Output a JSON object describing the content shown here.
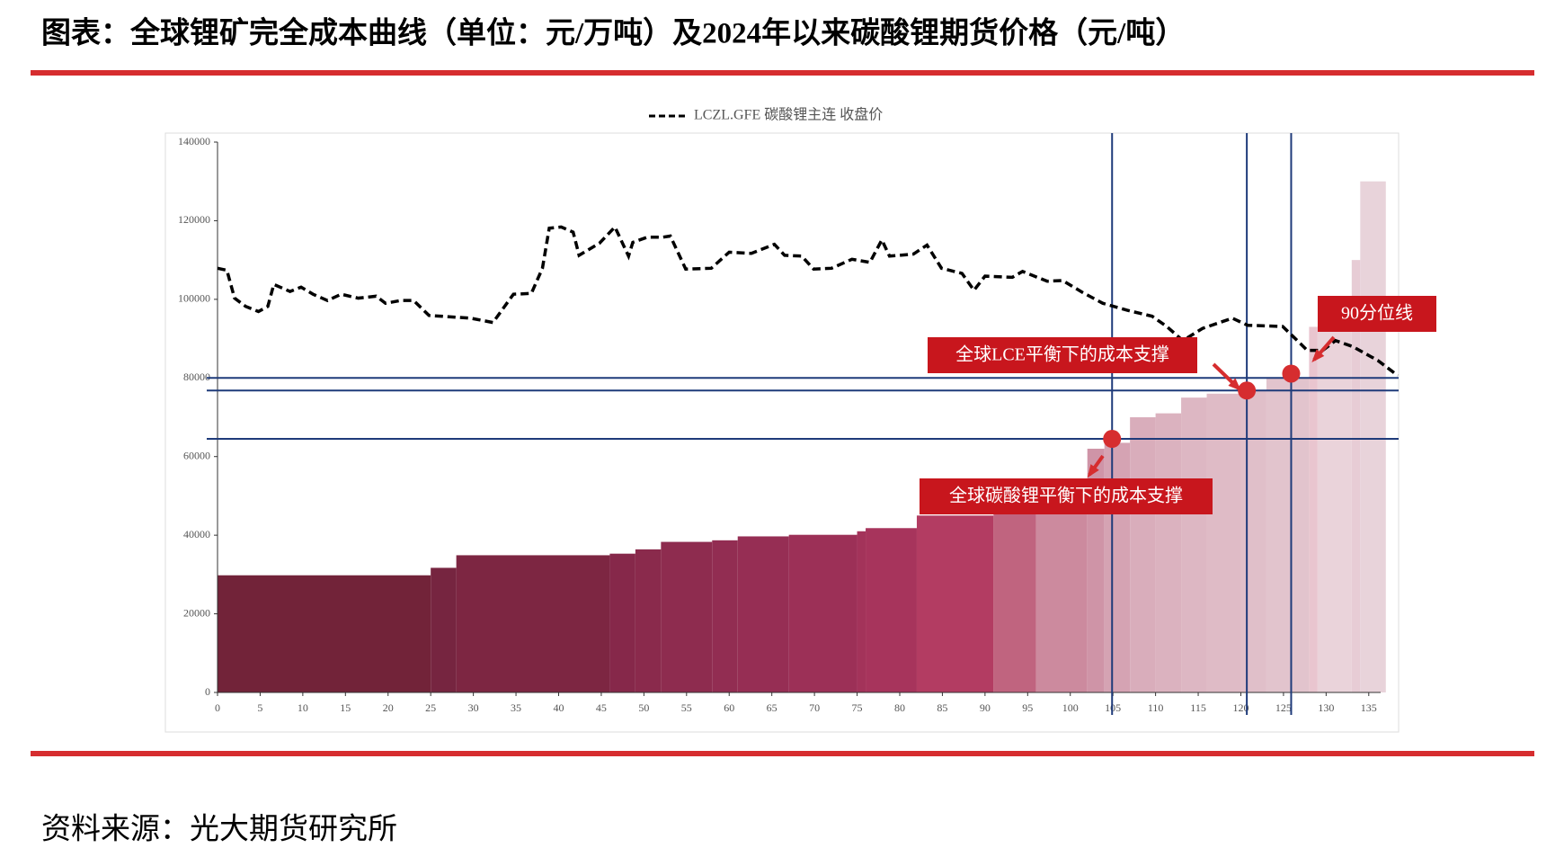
{
  "title": "图表：全球锂矿完全成本曲线（单位：元/万吨）及2024年以来碳酸锂期货价格（元/吨）",
  "source": "资料来源：光大期货研究所",
  "chart_data": {
    "type": "combo",
    "bars": {
      "x_start": [
        0,
        25,
        28,
        46,
        49,
        52,
        58,
        61,
        67,
        75,
        76,
        82,
        91,
        96,
        102,
        104,
        107,
        110,
        113,
        116,
        120,
        123,
        128,
        129,
        133,
        134
      ],
      "x_end": [
        25,
        28,
        46,
        49,
        52,
        58,
        61,
        67,
        75,
        76,
        82,
        91,
        96,
        102,
        104,
        107,
        110,
        113,
        116,
        120,
        123,
        128,
        129,
        133,
        134,
        137
      ],
      "values": [
        29800,
        31700,
        34900,
        35300,
        36400,
        38300,
        38700,
        39700,
        40100,
        41000,
        41800,
        45000,
        46000,
        47000,
        62000,
        63500,
        70000,
        71000,
        75000,
        76000,
        77000,
        80000,
        93000,
        100000,
        110000,
        130000
      ],
      "colors": [
        "#722339",
        "#762540",
        "#7d2642",
        "#86284a",
        "#8a2a4c",
        "#8e2c4f",
        "#922d52",
        "#962e54",
        "#9c3057",
        "#a3335a",
        "#a7345c",
        "#b33c62",
        "#c0647f",
        "#cc8a9e",
        "#cf94a7",
        "#d5a3b3",
        "#d9adbb",
        "#dbb2bf",
        "#ddb7c3",
        "#dfbbc6",
        "#e0bfc9",
        "#e2c4cd",
        "#e9c5cf",
        "#ead3da",
        "#e7ccd5",
        "#e8d3da"
      ]
    },
    "series": [
      {
        "name": "LCZL.GFE 碳酸锂主连 收盘价",
        "color": "#000000",
        "x": [
          0,
          1.1,
          2,
          3.3,
          4.8,
          5.9,
          6.6,
          8.5,
          9.8,
          11.2,
          12.9,
          14.5,
          16.5,
          18.6,
          19.7,
          21.5,
          23,
          24.8,
          29.7,
          32.3,
          34.7,
          36.8,
          38.1,
          38.9,
          40.3,
          41.7,
          42.4,
          44.8,
          46.6,
          48.2,
          48.7,
          50.4,
          52.2,
          53.1,
          54.9,
          57.9,
          60,
          62.6,
          65.3,
          66.5,
          68.5,
          69.9,
          72,
          74.4,
          76.5,
          77.9,
          78.8,
          81.6,
          83.2,
          84.9,
          87.3,
          88.7,
          90,
          93.2,
          94.4,
          97.3,
          99.1,
          101.4,
          103.8,
          106.7,
          109.6,
          111.3,
          113.2,
          115.5,
          119,
          120.8,
          124.9,
          126.1,
          127.8,
          129.6,
          131.1,
          133.1,
          136.1,
          138.4
        ],
        "values": [
          107900,
          107400,
          100300,
          98200,
          96900,
          98200,
          103800,
          102000,
          103100,
          101300,
          99700,
          101300,
          100300,
          100800,
          99000,
          99700,
          99700,
          95900,
          95200,
          94100,
          101300,
          101500,
          107900,
          118100,
          118400,
          117100,
          111200,
          114300,
          118400,
          111000,
          114500,
          115800,
          115800,
          116100,
          107700,
          107900,
          112000,
          111700,
          114000,
          111200,
          111000,
          107700,
          107900,
          110200,
          109400,
          115100,
          111000,
          111500,
          113800,
          107900,
          106600,
          102300,
          105900,
          105600,
          107100,
          104600,
          104800,
          101800,
          99000,
          97200,
          95700,
          93100,
          89500,
          92600,
          95200,
          93400,
          93100,
          90600,
          87000,
          87000,
          89500,
          88000,
          84400,
          80600
        ]
      }
    ],
    "hlines": [
      80000,
      76800,
      64500
    ],
    "vlines": [
      104.9,
      120.7,
      125.9
    ],
    "markers": {
      "x": [
        104.9,
        120.7,
        125.9
      ],
      "values": [
        64500,
        76800,
        81100
      ]
    },
    "annotations": [
      "全球LCE平衡下的成本支撑",
      "全球碳酸锂平衡下的成本支撑",
      "90分位线"
    ],
    "xlim": [
      0,
      138.5
    ],
    "ylim": [
      0,
      140000
    ],
    "xticks": [
      0,
      5,
      10,
      15,
      20,
      25,
      30,
      35,
      40,
      45,
      50,
      55,
      60,
      65,
      70,
      75,
      80,
      85,
      90,
      95,
      100,
      105,
      110,
      115,
      120,
      125,
      130,
      135
    ],
    "yticks": [
      0,
      20000,
      40000,
      60000,
      80000,
      100000,
      120000,
      140000
    ]
  }
}
